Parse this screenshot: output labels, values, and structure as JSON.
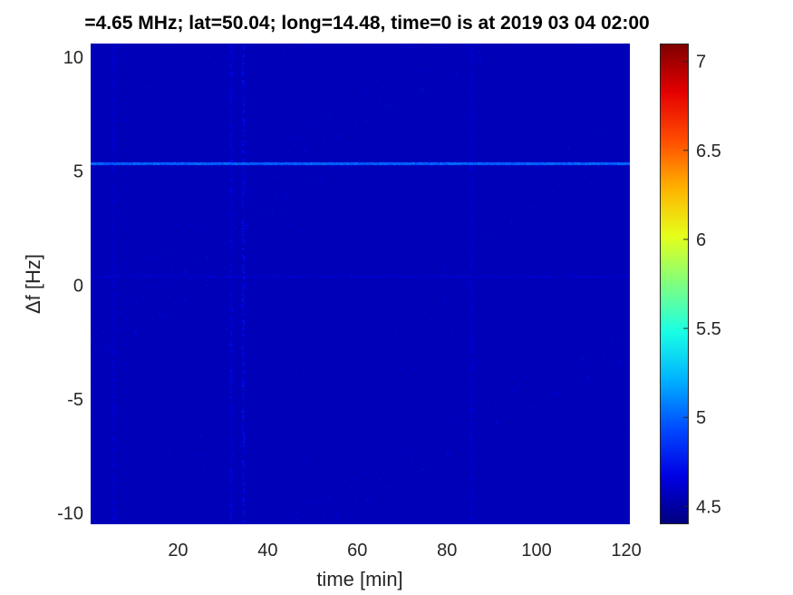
{
  "chart_data": {
    "type": "heatmap",
    "title": "=4.65 MHz;  lat=50.04; long=14.48, time=0 is at 2019 03 04 02:00",
    "xlabel": "time [min]",
    "ylabel": "Δf [Hz]",
    "xlim": [
      0.5,
      120.8
    ],
    "ylim": [
      -10.5,
      10.6
    ],
    "xticks": [
      20,
      40,
      60,
      80,
      100,
      120
    ],
    "yticks": [
      10,
      5,
      0,
      -5,
      -10
    ],
    "colormap": "jet",
    "clim": [
      4.4,
      7.1
    ],
    "colorbar_ticks": [
      7,
      6.5,
      6,
      5.5,
      5,
      4.5
    ],
    "background_value": 4.55,
    "features": [
      {
        "kind": "horizontal-line",
        "df_hz": 5.35,
        "value": 5.1
      },
      {
        "kind": "horizontal-line",
        "df_hz": 0.4,
        "value": 4.7
      },
      {
        "kind": "vertical-streak",
        "time_min": 31.8,
        "value": 4.8
      },
      {
        "kind": "vertical-streak",
        "time_min": 34.5,
        "value": 4.85
      },
      {
        "kind": "vertical-streak",
        "time_min": 5.5,
        "value": 4.75
      },
      {
        "kind": "vertical-streak",
        "time_min": 85.5,
        "value": 4.75
      }
    ]
  }
}
